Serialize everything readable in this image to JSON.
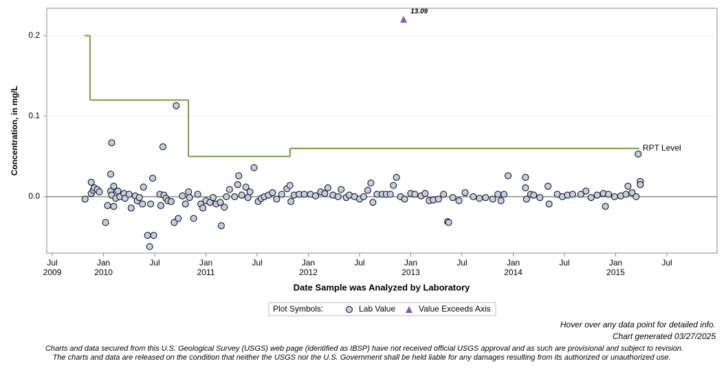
{
  "chart_data": {
    "type": "scatter",
    "ylabel": "Concentration, in mg/L",
    "xlabel": "Date Sample was Analyzed by Laboratory",
    "xlim": [
      2009.446,
      2015.99
    ],
    "ylim": [
      -0.07,
      0.234
    ],
    "yticks": [
      {
        "value": 0,
        "label": "0.0"
      },
      {
        "value": 0.1,
        "label": "0.1"
      },
      {
        "value": 0.2,
        "label": "0.2"
      }
    ],
    "grid": true,
    "hline": 0,
    "xticks": [
      {
        "value": 2009.5,
        "label": "Jul"
      },
      {
        "value": 2010,
        "label": "Jan"
      },
      {
        "value": 2010.5,
        "label": "Jul"
      },
      {
        "value": 2011,
        "label": "Jan"
      },
      {
        "value": 2011.5,
        "label": "Jul"
      },
      {
        "value": 2012,
        "label": "Jan"
      },
      {
        "value": 2012.5,
        "label": "Jul"
      },
      {
        "value": 2013,
        "label": "Jan"
      },
      {
        "value": 2013.5,
        "label": "Jul"
      },
      {
        "value": 2014,
        "label": "Jan"
      },
      {
        "value": 2014.5,
        "label": "Jul"
      },
      {
        "value": 2015,
        "label": "Jan"
      },
      {
        "value": 2015.5,
        "label": "Jul"
      }
    ],
    "xtick_years": [
      {
        "value": 2009.5,
        "label": "2009"
      },
      {
        "value": 2010,
        "label": "2010"
      },
      {
        "value": 2011,
        "label": "2011"
      },
      {
        "value": 2012,
        "label": "2012"
      },
      {
        "value": 2013,
        "label": "2013"
      },
      {
        "value": 2014,
        "label": "2014"
      },
      {
        "value": 2015,
        "label": "2015"
      }
    ],
    "series": [
      {
        "name": "Lab Value",
        "color": "#c5cfe4",
        "x": [
          2009.82,
          2009.88,
          2009.88,
          2009.9,
          2009.91,
          2009.94,
          2009.96,
          2010.02,
          2010.04,
          2010.07,
          2010.07,
          2010.08,
          2010.08,
          2010.1,
          2010.1,
          2010.12,
          2010.14,
          2010.16,
          2010.2,
          2010.21,
          2010.25,
          2010.27,
          2010.31,
          2010.33,
          2010.35,
          2010.38,
          2010.39,
          2010.43,
          2010.45,
          2010.46,
          2010.48,
          2010.49,
          2010.55,
          2010.56,
          2010.58,
          2010.59,
          2010.61,
          2010.63,
          2010.66,
          2010.69,
          2010.71,
          2010.73,
          2010.77,
          2010.8,
          2010.83,
          2010.84,
          2010.88,
          2010.92,
          2010.95,
          2010.97,
          2011.0,
          2011.04,
          2011.07,
          2011.1,
          2011.14,
          2011.15,
          2011.18,
          2011.2,
          2011.23,
          2011.28,
          2011.31,
          2011.32,
          2011.35,
          2011.39,
          2011.41,
          2011.43,
          2011.47,
          2011.51,
          2011.54,
          2011.57,
          2011.61,
          2011.65,
          2011.69,
          2011.74,
          2011.79,
          2011.82,
          2011.83,
          2011.86,
          2011.91,
          2011.96,
          2012.02,
          2012.07,
          2012.12,
          2012.16,
          2012.19,
          2012.24,
          2012.29,
          2012.32,
          2012.37,
          2012.4,
          2012.45,
          2012.5,
          2012.54,
          2012.58,
          2012.61,
          2012.63,
          2012.67,
          2012.72,
          2012.76,
          2012.8,
          2012.83,
          2012.86,
          2012.9,
          2012.94,
          2013.0,
          2013.04,
          2013.1,
          2013.14,
          2013.18,
          2013.22,
          2013.27,
          2013.32,
          2013.36,
          2013.37,
          2013.41,
          2013.47,
          2013.53,
          2013.61,
          2013.67,
          2013.73,
          2013.8,
          2013.85,
          2013.88,
          2013.91,
          2013.95,
          2014.12,
          2014.12,
          2014.13,
          2014.17,
          2014.2,
          2014.26,
          2014.34,
          2014.35,
          2014.43,
          2014.48,
          2014.53,
          2014.58,
          2014.66,
          2014.71,
          2014.76,
          2014.82,
          2014.88,
          2014.9,
          2014.93,
          2014.99,
          2015.05,
          2015.1,
          2015.12,
          2015.16,
          2015.2,
          2015.22,
          2015.24,
          2015.24
        ],
        "values": [
          -0.003,
          0.018,
          0.004,
          0.008,
          0.011,
          0.009,
          0.006,
          -0.032,
          -0.011,
          0.028,
          0.007,
          0.067,
          0.002,
          0.013,
          -0.012,
          -0.002,
          0.007,
          0,
          0.004,
          -0.002,
          0.003,
          -0.014,
          0.001,
          -0.005,
          -0.001,
          -0.009,
          0.012,
          -0.048,
          -0.062,
          -0.009,
          0.023,
          -0.048,
          0.003,
          -0.011,
          0.062,
          0.002,
          -0.002,
          -0.005,
          -0.006,
          -0.032,
          0.113,
          -0.027,
          0.001,
          -0.009,
          0.006,
          -0.001,
          -0.027,
          0.003,
          -0.009,
          -0.014,
          -0.005,
          -0.007,
          -0.001,
          -0.009,
          -0.007,
          -0.036,
          -0.013,
          0,
          0.009,
          0,
          0.015,
          0.026,
          0.002,
          0.012,
          -0.001,
          0.006,
          0.036,
          -0.006,
          -0.002,
          0,
          0.002,
          0.005,
          -0.003,
          0.003,
          0.01,
          0.014,
          -0.006,
          0.002,
          0.003,
          0.003,
          0.003,
          0.001,
          0.006,
          0.004,
          0.011,
          0.002,
          0,
          0.009,
          -0.001,
          0.002,
          0,
          -0.003,
          0,
          0.008,
          0.017,
          -0.007,
          0.003,
          0.003,
          0.003,
          0.003,
          0.014,
          0.024,
          0,
          -0.003,
          0.004,
          0.003,
          0.001,
          0.004,
          -0.005,
          -0.004,
          -0.003,
          0.003,
          -0.031,
          -0.032,
          -0.001,
          -0.005,
          0.005,
          0,
          -0.002,
          -0.001,
          -0.003,
          0.003,
          -0.005,
          0.003,
          0.026,
          0.011,
          0.024,
          -0.003,
          0.003,
          0.002,
          -0.001,
          0.013,
          -0.009,
          0.003,
          0,
          0.002,
          0.003,
          0.003,
          0.007,
          -0.001,
          0.002,
          0.004,
          -0.012,
          0.003,
          0,
          0.001,
          0.003,
          0.013,
          0.005,
          0,
          0.053,
          0.019,
          0.015
        ]
      },
      {
        "name": "Value Exceeds Axis",
        "color": "#7b5ea7",
        "x": [
          2012.93
        ],
        "values": [
          13.09
        ],
        "value_labels": [
          "13.09"
        ]
      },
      {
        "name": "RPT Level",
        "color": "#7a9a3a",
        "x": [
          2009.815,
          2009.869,
          2010.829,
          2011.822,
          2015.231
        ],
        "values": [
          0.2,
          0.12,
          0.05,
          0.06,
          0.06
        ]
      }
    ],
    "legend_title": "Plot Symbols:",
    "notes": [
      "Hover over any data point for detailed info.",
      "Chart generated 03/27/2025"
    ],
    "disclaimer": [
      "Charts and data secured from this U.S. Geological Survey (USGS) web page (identified as IBSP) have not received official USGS approval and as such are provisional and subject to revision.",
      "The charts and data are released on the condition that neither the USGS nor the U.S. Government shall be held liable for any damages resulting from its authorized or unauthorized use."
    ]
  }
}
